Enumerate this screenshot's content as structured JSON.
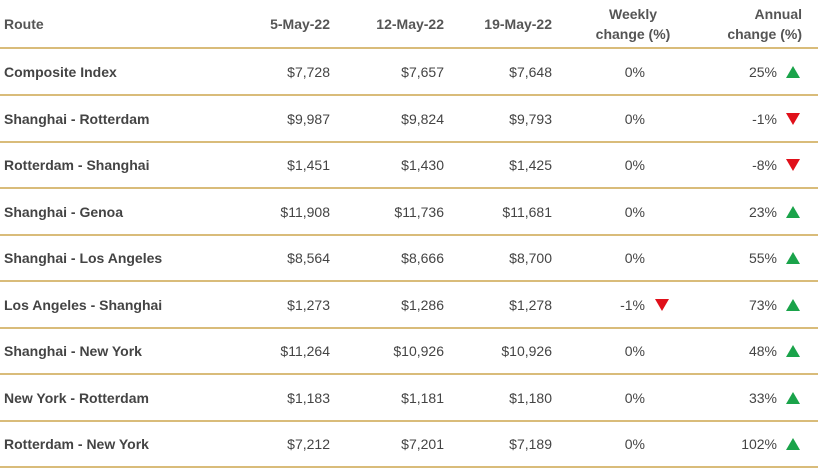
{
  "table": {
    "header": [
      "Route",
      "5-May-22",
      "12-May-22",
      "19-May-22",
      "Weekly change (%)",
      "Annual change (%)"
    ],
    "rows": [
      [
        "Composite Index",
        "$7,728",
        "$7,657",
        "$7,648",
        "0%",
        "25%"
      ],
      [
        "Shanghai - Rotterdam",
        "$9,987",
        "$9,824",
        "$9,793",
        "0%",
        "-1%"
      ],
      [
        "Rotterdam - Shanghai",
        "$1,451",
        "$1,430",
        "$1,425",
        "0%",
        "-8%"
      ],
      [
        "Shanghai - Genoa",
        "$11,908",
        "$11,736",
        "$11,681",
        "0%",
        "23%"
      ],
      [
        "Shanghai - Los Angeles",
        "$8,564",
        "$8,666",
        "$8,700",
        "0%",
        "55%"
      ],
      [
        "Los Angeles - Shanghai",
        "$1,273",
        "$1,286",
        "$1,278",
        "-1%",
        "73%"
      ],
      [
        "Shanghai - New York",
        "$11,264",
        "$10,926",
        "$10,926",
        "0%",
        "48%"
      ],
      [
        "New York - Rotterdam",
        "$1,183",
        "$1,181",
        "$1,180",
        "0%",
        "33%"
      ],
      [
        "Rotterdam - New York",
        "$7,212",
        "$7,201",
        "$7,189",
        "0%",
        "102%"
      ]
    ]
  }
}
